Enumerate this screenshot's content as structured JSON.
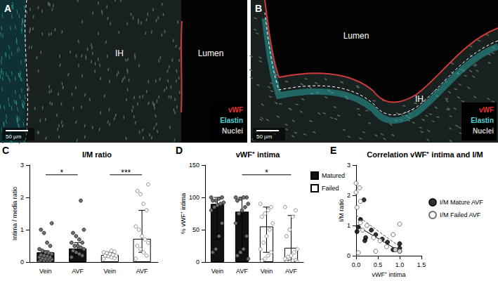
{
  "chart_data": [
    {
      "type": "bar",
      "panel_label": "C",
      "title": "I/M ratio",
      "y_label": "Intima / media ratio",
      "categories": [
        "Vein",
        "AVF",
        "Vein",
        "AVF"
      ],
      "ylim": [
        0,
        3
      ],
      "yticks": [
        0,
        1,
        2,
        3
      ],
      "grid": false,
      "series": [
        {
          "color": "#111111",
          "values": [
            0.3,
            0.42,
            null,
            null
          ],
          "error_low": [
            0.08,
            0.22,
            null,
            null
          ],
          "error_high": [
            0.35,
            0.6,
            null,
            null
          ],
          "points": [
            [
              0.02,
              0.03,
              0.05,
              0.05,
              0.07,
              0.08,
              0.1,
              0.1,
              0.12,
              0.15,
              0.15,
              0.18,
              0.2,
              0.22,
              0.25,
              0.28,
              0.3,
              0.35,
              0.4,
              0.5,
              0.6,
              0.9,
              1.0,
              1.2
            ],
            [
              0.15,
              0.2,
              0.25,
              0.3,
              0.35,
              0.4,
              0.45,
              0.5,
              0.5,
              0.6,
              0.6,
              0.7,
              0.8,
              0.9,
              1.0,
              1.9
            ],
            null,
            null
          ]
        },
        {
          "color": "#ffffff",
          "values": [
            null,
            null,
            0.22,
            0.72
          ],
          "error_low": [
            null,
            null,
            0.15,
            0.3
          ],
          "error_high": [
            null,
            null,
            0.3,
            1.6
          ],
          "points": [
            null,
            null,
            [
              0.1,
              0.12,
              0.15,
              0.18,
              0.2,
              0.2,
              0.22,
              0.25,
              0.28,
              0.3,
              0.32,
              0.35
            ],
            [
              0.1,
              0.2,
              0.3,
              0.4,
              0.5,
              0.6,
              0.7,
              0.8,
              1.0,
              1.1,
              1.6,
              1.8,
              2.1,
              2.2,
              2.4
            ]
          ]
        }
      ],
      "annotations": [
        {
          "label": "*",
          "from": 0,
          "to": 1
        },
        {
          "label": "***",
          "from": 2,
          "to": 3
        }
      ]
    },
    {
      "type": "bar",
      "panel_label": "D",
      "title": "vWF⁺ intima",
      "y_label": "% vWF⁺ intima",
      "categories": [
        "Vein",
        "AVF",
        "Vein",
        "AVF"
      ],
      "ylim": [
        0,
        150
      ],
      "yticks": [
        0,
        50,
        100,
        150
      ],
      "grid": false,
      "legend": "right",
      "series": [
        {
          "name": "Matured",
          "color": "#111111",
          "values": [
            90,
            78,
            null,
            null
          ],
          "error_low": [
            35,
            15,
            null,
            null
          ],
          "error_high": [
            100,
            100,
            null,
            null
          ],
          "points": [
            [
              100,
              100,
              98,
              95,
              95,
              92,
              90,
              88,
              85,
              80,
              60,
              40,
              20,
              15
            ],
            [
              100,
              100,
              100,
              98,
              95,
              90,
              85,
              80,
              75,
              60,
              40,
              20,
              15,
              10,
              5
            ],
            null,
            null
          ]
        },
        {
          "name": "Failed",
          "color": "#ffffff",
          "values": [
            null,
            null,
            55,
            22
          ],
          "error_low": [
            null,
            null,
            15,
            3
          ],
          "error_high": [
            null,
            null,
            85,
            72
          ],
          "points": [
            null,
            null,
            [
              90,
              85,
              80,
              75,
              70,
              60,
              50,
              40,
              30,
              20,
              15,
              10,
              5,
              2
            ],
            [
              85,
              80,
              70,
              50,
              40,
              20,
              15,
              10,
              8,
              5,
              3,
              2,
              0,
              0,
              0
            ]
          ]
        }
      ],
      "annotations": [
        {
          "label": "*",
          "from": 1,
          "to": 3
        }
      ]
    },
    {
      "type": "scatter",
      "panel_label": "E",
      "title": "Correlation vWF⁺ intima and I/M",
      "x_label": "vWF⁺ intima",
      "y_label": "I/M ratio",
      "xlim": [
        0,
        1.5
      ],
      "xticks": [
        {
          "value": 0,
          "label": "0.0"
        },
        {
          "value": 0.5,
          "label": "0.5"
        },
        {
          "value": 1,
          "label": "1.0"
        },
        {
          "value": 1.5,
          "label": "1.5"
        }
      ],
      "ylim": [
        0,
        3
      ],
      "yticks": [
        0,
        1,
        2,
        3
      ],
      "grid": false,
      "legend": "right",
      "series": [
        {
          "name": "I/M Mature AVF",
          "color": "#000000",
          "marker": "circle",
          "line_style": "solid",
          "x": [
            0.02,
            0.05,
            0.1,
            0.18,
            0.2,
            0.22,
            0.35,
            0.45,
            0.6,
            0.72,
            0.85,
            0.9,
            1.0,
            1.0,
            1.0
          ],
          "values": [
            0.8,
            0.95,
            1.2,
            1.85,
            0.5,
            0.6,
            0.85,
            0.7,
            0.55,
            0.45,
            0.2,
            0.2,
            0.25,
            0.4,
            0.15
          ],
          "trendline": [
            [
              0,
              1.0
            ],
            [
              1.0,
              0.15
            ]
          ]
        },
        {
          "name": "I/M Failed AVF",
          "color": "#555555",
          "marker": "open circle",
          "line_style": "dashed",
          "x": [
            0,
            0,
            0.02,
            0.05,
            0.08,
            0.1,
            0.1,
            0.15,
            0.25,
            0.4,
            0.45,
            0.55,
            0.7,
            0.85,
            0.9,
            1.0,
            1.0
          ],
          "values": [
            2.4,
            2.1,
            1.6,
            0.1,
            2.25,
            1.8,
            1.1,
            0.85,
            1.0,
            0.6,
            0.15,
            0.5,
            0.3,
            0.7,
            0.2,
            1.05,
            0.15
          ],
          "trendline": [
            [
              0,
              1.35
            ],
            [
              1.0,
              0.3
            ]
          ]
        }
      ]
    }
  ],
  "images": [
    {
      "panel_label": "A",
      "regions": [
        "IH",
        "Lumen"
      ],
      "legend": [
        {
          "name": "vWF",
          "color": "#e8312f"
        },
        {
          "name": "Elastin",
          "color": "#4fd6d6"
        },
        {
          "name": "Nuclei",
          "color": "#cccccc"
        }
      ],
      "scale_bar": "50 µm"
    },
    {
      "panel_label": "B",
      "regions": [
        "Lumen",
        "IH"
      ],
      "legend": [
        {
          "name": "vWF",
          "color": "#e8312f"
        },
        {
          "name": "Elastin",
          "color": "#4fd6d6"
        },
        {
          "name": "Nuclei",
          "color": "#cccccc"
        }
      ],
      "scale_bar": "50 µm"
    }
  ]
}
